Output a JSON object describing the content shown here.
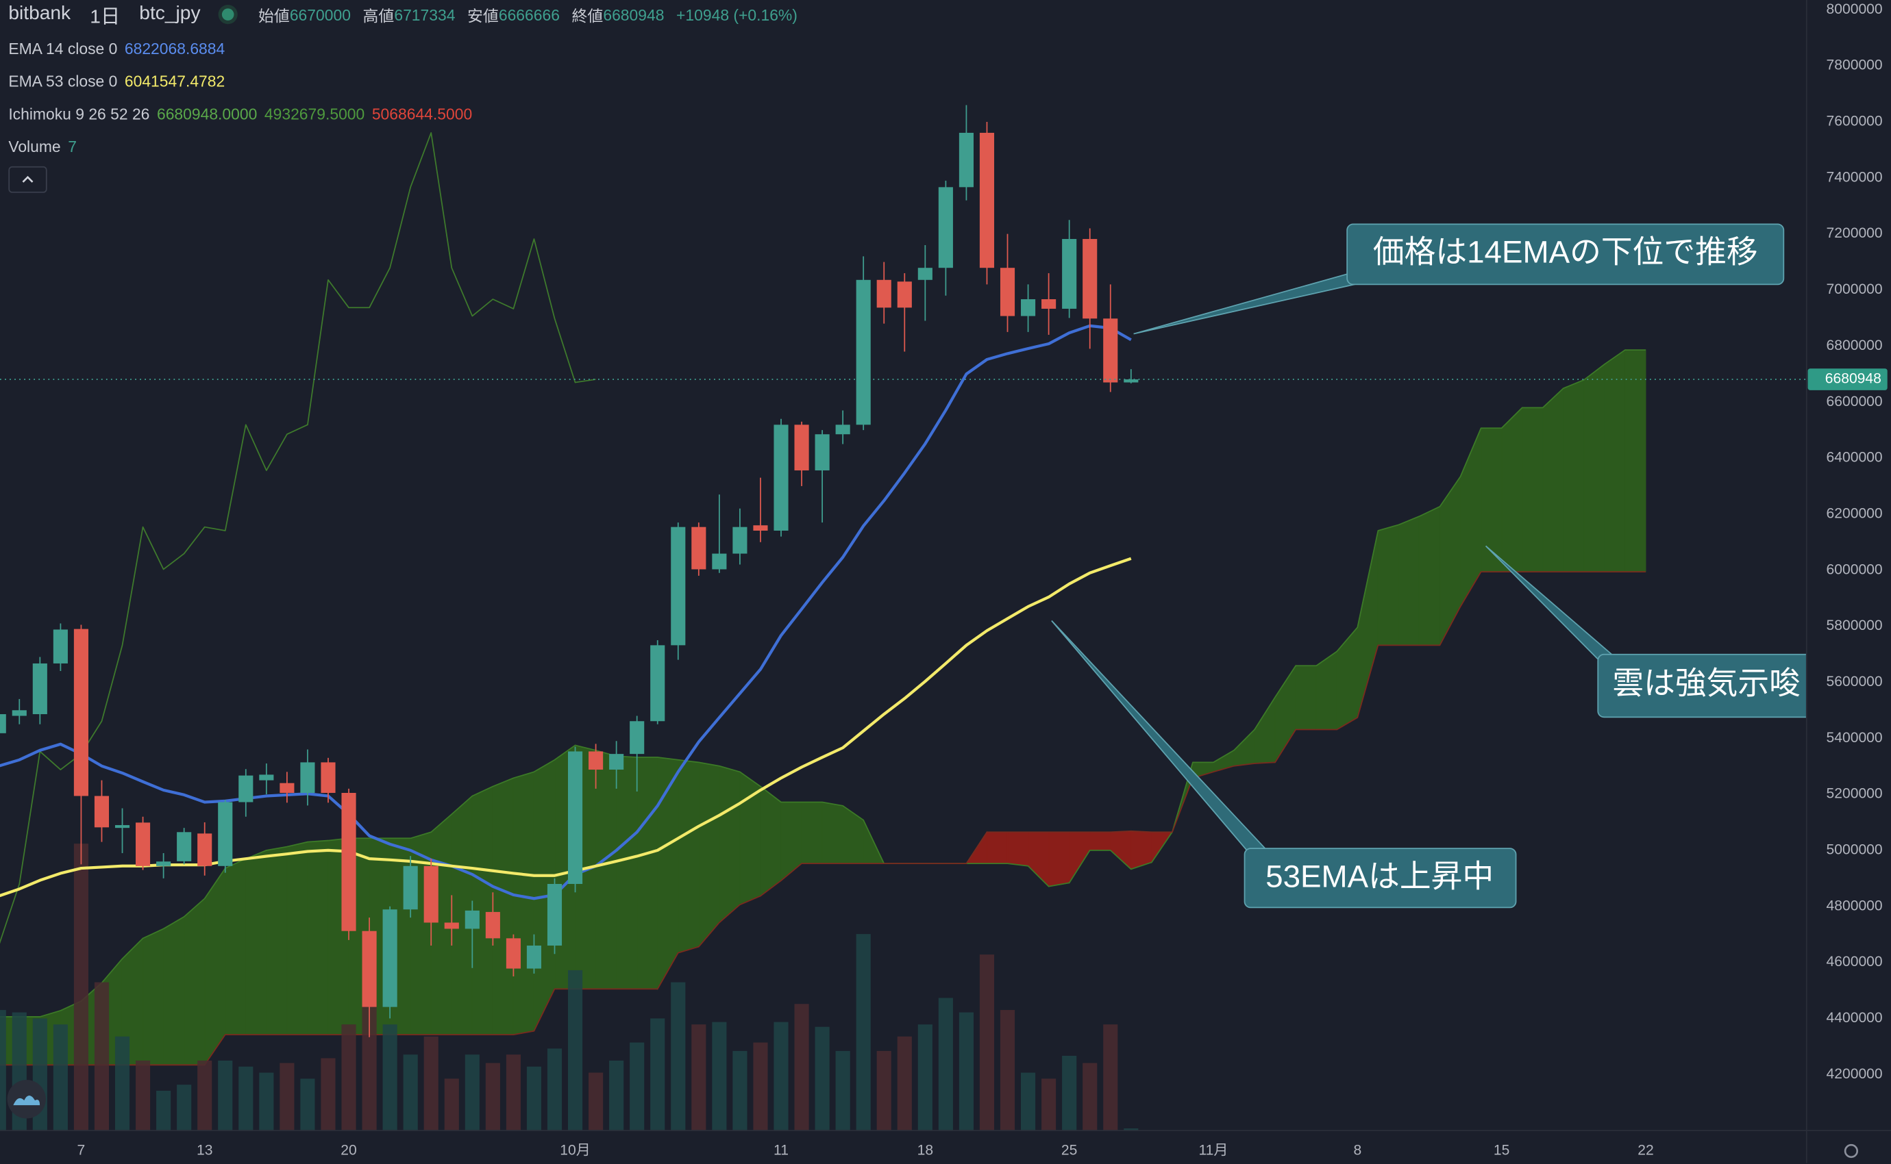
{
  "header": {
    "symbol": "bitbank",
    "interval": "1日",
    "pair": "btc_jpy",
    "open_label": "始値",
    "high_label": "高値",
    "low_label": "安値",
    "close_label": "終値",
    "change": "+10948 (+0.16%)"
  },
  "chart_data": {
    "type": "candlestick",
    "categories": [
      null,
      null,
      null,
      null,
      "7",
      null,
      null,
      null,
      null,
      null,
      "13",
      null,
      null,
      null,
      null,
      null,
      null,
      "20",
      null,
      null,
      null,
      null,
      null,
      null,
      null,
      null,
      null,
      null,
      "10月",
      null,
      null,
      null,
      null,
      null,
      null,
      null,
      null,
      null,
      "11",
      null,
      null,
      null,
      null,
      null,
      null,
      "18",
      null,
      null,
      null,
      null,
      null,
      null,
      "25",
      null,
      null,
      null,
      null,
      null,
      null,
      "11月",
      null,
      null,
      null,
      null,
      null,
      null,
      "8",
      null,
      null,
      null,
      null,
      null,
      null,
      "15",
      null,
      null,
      null,
      null,
      null,
      null,
      "22"
    ],
    "ylim": [
      4000000,
      8035000
    ],
    "yticks": [
      8000000,
      7800000,
      7600000,
      7400000,
      7200000,
      7000000,
      6800000,
      6600000,
      6400000,
      6200000,
      6000000,
      5800000,
      5600000,
      5400000,
      5200000,
      5000000,
      4800000,
      4600000,
      4400000,
      4200000
    ],
    "grid": false,
    "up_color": "#3f9e8f",
    "down_color": "#e05a4f",
    "candles": {
      "open": [
        5418000,
        5480000,
        5486000,
        5667000,
        5790000,
        5194000,
        5080000,
        5099000,
        4944000,
        4961000,
        5060000,
        4944000,
        5172000,
        5250000,
        5240000,
        5205000,
        5314000,
        5205000,
        4712000,
        4441000,
        4789000,
        4944000,
        4742000,
        4720000,
        4780000,
        4686000,
        4578000,
        4660000,
        4880000,
        5353000,
        5288000,
        5344000,
        5461000,
        5732000,
        6154000,
        6003000,
        6059000,
        6160000,
        6141000,
        6519000,
        6356000,
        6485000,
        6519000,
        7036000,
        7030000,
        7036000,
        7079000,
        7367000,
        7561000,
        7079000,
        6907000,
        6967000,
        6933000,
        7182000,
        6898000,
        6670000,
        null,
        null,
        null,
        null,
        null,
        null,
        null,
        null,
        null,
        null,
        null,
        null,
        null,
        null,
        null,
        null,
        null,
        null,
        null,
        null,
        null,
        null,
        null,
        null,
        null
      ],
      "high": [
        5520000,
        5540000,
        5690000,
        5810000,
        5805000,
        5250000,
        5150000,
        5120000,
        4990000,
        5080000,
        5100000,
        5180000,
        5290000,
        5310000,
        5280000,
        5360000,
        5330000,
        5220000,
        4760000,
        4800000,
        4980000,
        4970000,
        4840000,
        4820000,
        4850000,
        4700000,
        4700000,
        4900000,
        5370000,
        5380000,
        5390000,
        5480000,
        5750000,
        6170000,
        6170000,
        6270000,
        6220000,
        6330000,
        6540000,
        6530000,
        6500000,
        6570000,
        7120000,
        7100000,
        7060000,
        7160000,
        7390000,
        7660000,
        7600000,
        7200000,
        7020000,
        7060000,
        7250000,
        7220000,
        7020000,
        6717334,
        null,
        null,
        null,
        null,
        null,
        null,
        null,
        null,
        null,
        null,
        null,
        null,
        null,
        null,
        null,
        null,
        null,
        null,
        null,
        null,
        null,
        null,
        null,
        null,
        null
      ],
      "low": [
        5400000,
        5450000,
        5450000,
        5640000,
        4950000,
        5030000,
        4990000,
        4930000,
        4900000,
        4950000,
        4910000,
        4920000,
        5120000,
        5200000,
        5170000,
        5160000,
        5170000,
        4680000,
        4333000,
        4400000,
        4760000,
        4660000,
        4660000,
        4580000,
        4660000,
        4550000,
        4560000,
        4630000,
        4850000,
        5220000,
        5220000,
        5210000,
        5450000,
        5680000,
        5980000,
        5990000,
        6020000,
        6100000,
        6120000,
        6300000,
        6170000,
        6450000,
        6500000,
        6880000,
        6780000,
        6890000,
        6980000,
        7320000,
        7020000,
        6850000,
        6850000,
        6840000,
        6900000,
        6790000,
        6636000,
        6666666,
        null,
        null,
        null,
        null,
        null,
        null,
        null,
        null,
        null,
        null,
        null,
        null,
        null,
        null,
        null,
        null,
        null,
        null,
        null,
        null,
        null,
        null,
        null,
        null,
        null
      ],
      "close": [
        5486000,
        5500000,
        5667000,
        5788000,
        5194000,
        5082000,
        5090000,
        4944000,
        4960000,
        5065000,
        4944000,
        5172000,
        5267000,
        5270000,
        5205000,
        5314000,
        5205000,
        4712000,
        4441000,
        4789000,
        4944000,
        4742000,
        4720000,
        4785000,
        4686000,
        4578000,
        4660000,
        4880000,
        5353000,
        5288000,
        5344000,
        5461000,
        5732000,
        6154000,
        6003000,
        6059000,
        6154000,
        6141000,
        6519000,
        6356000,
        6485000,
        6519000,
        7036000,
        6937000,
        6937000,
        7079000,
        7367000,
        7561000,
        7079000,
        6907000,
        6967000,
        6933000,
        7182000,
        6898000,
        6670000,
        6680948,
        null,
        null,
        null,
        null,
        null,
        null,
        null,
        null,
        null,
        null,
        null,
        null,
        null,
        null,
        null,
        null,
        null,
        null,
        null,
        null,
        null,
        null,
        null,
        null,
        null
      ]
    },
    "series": [
      {
        "name": "EMA 14 close 0",
        "color": "#3f6fd6",
        "values": [
          5301000,
          5323000,
          5357000,
          5379000,
          5344000,
          5301000,
          5276000,
          5245000,
          5215000,
          5198000,
          5172000,
          5176000,
          5185000,
          5194000,
          5198000,
          5202000,
          5194000,
          5129000,
          5052000,
          5022000,
          5000000,
          4966000,
          4944000,
          4914000,
          4871000,
          4841000,
          4828000,
          4841000,
          4914000,
          4944000,
          5000000,
          5065000,
          5159000,
          5280000,
          5387000,
          5474000,
          5560000,
          5646000,
          5767000,
          5861000,
          5956000,
          6046000,
          6158000,
          6248000,
          6347000,
          6451000,
          6571000,
          6700000,
          6752000,
          6773000,
          6791000,
          6808000,
          6847000,
          6872000,
          6864000,
          6822068.6884,
          null,
          null,
          null,
          null,
          null,
          null,
          null,
          null,
          null,
          null,
          null,
          null,
          null,
          null,
          null,
          null,
          null,
          null,
          null,
          null,
          null,
          null,
          null,
          null,
          null
        ]
      },
      {
        "name": "EMA 53 close 0",
        "color": "#f3ea6a",
        "values": [
          4837000,
          4862000,
          4893000,
          4918000,
          4936000,
          4940000,
          4944000,
          4944000,
          4948000,
          4948000,
          4948000,
          4961000,
          4970000,
          4979000,
          4987000,
          4996000,
          5000000,
          4996000,
          4970000,
          4966000,
          4961000,
          4953000,
          4944000,
          4936000,
          4927000,
          4918000,
          4910000,
          4910000,
          4927000,
          4944000,
          4961000,
          4979000,
          5000000,
          5043000,
          5086000,
          5125000,
          5168000,
          5215000,
          5258000,
          5297000,
          5332000,
          5366000,
          5426000,
          5486000,
          5542000,
          5603000,
          5667000,
          5732000,
          5784000,
          5827000,
          5870000,
          5904000,
          5951000,
          5990000,
          6016000,
          6041547.4782,
          null,
          null,
          null,
          null,
          null,
          null,
          null,
          null,
          null,
          null,
          null,
          null,
          null,
          null,
          null,
          null,
          null,
          null,
          null,
          null,
          null,
          null,
          null,
          null,
          null
        ]
      }
    ],
    "ichimoku": {
      "name": "Ichimoku 9 26 52 26",
      "legend_value_labels": [
        "6680948.0000",
        "4932679.5000",
        "5068644.5000"
      ],
      "bull_color": "#2c5a1d",
      "bear_color": "#8a1e19",
      "lagging": {
        "color": "#3e7a2c",
        "values": [
          4660000,
          4880000,
          5353000,
          5288000,
          5344000,
          5461000,
          5732000,
          6154000,
          6003000,
          6059000,
          6154000,
          6141000,
          6519000,
          6356000,
          6485000,
          6519000,
          7036000,
          6937000,
          6937000,
          7079000,
          7367000,
          7561000,
          7079000,
          6907000,
          6967000,
          6933000,
          7182000,
          6898000,
          6670000,
          6680948,
          null,
          null,
          null,
          null,
          null,
          null,
          null,
          null,
          null,
          null,
          null,
          null,
          null,
          null,
          null,
          null,
          null,
          null,
          null,
          null,
          null,
          null,
          null,
          null,
          null,
          null,
          null,
          null,
          null,
          null,
          null,
          null,
          null,
          null,
          null,
          null,
          null,
          null,
          null,
          null,
          null,
          null,
          null,
          null,
          null,
          null,
          null,
          null,
          null,
          null,
          null
        ]
      },
      "span_a": {
        "color": "#3c7a27",
        "values": [
          4406000,
          4406000,
          4406000,
          4428000,
          4462000,
          4527000,
          4613000,
          4686000,
          4720000,
          4763000,
          4828000,
          4936000,
          4970000,
          5000000,
          5013000,
          5030000,
          5035000,
          5043000,
          5043000,
          5043000,
          5043000,
          5065000,
          5129000,
          5194000,
          5228000,
          5258000,
          5280000,
          5323000,
          5375000,
          5357000,
          5336000,
          5332000,
          5332000,
          5323000,
          5314000,
          5301000,
          5280000,
          5228000,
          5172000,
          5172000,
          5172000,
          5159000,
          5108000,
          4953000,
          4953000,
          4953000,
          4953000,
          4953000,
          4953000,
          4953000,
          4944000,
          4871000,
          4884000,
          5000000,
          5000000,
          4932679.5,
          4957000,
          5065000,
          5314000,
          5314000,
          5357000,
          5431000,
          5547000,
          5659000,
          5659000,
          5710000,
          5796000,
          6141000,
          6162000,
          6192000,
          6227000,
          6334000,
          6507000,
          6507000,
          6580000,
          6580000,
          6649000,
          6679000,
          6735000,
          6786000,
          6786000
        ]
      },
      "span_b": {
        "color": "#7a2a1e",
        "values": [
          4234000,
          4234000,
          4234000,
          4234000,
          4234000,
          4234000,
          4234000,
          4234000,
          4234000,
          4234000,
          4234000,
          4342000,
          4342000,
          4342000,
          4342000,
          4342000,
          4342000,
          4342000,
          4342000,
          4342000,
          4342000,
          4342000,
          4342000,
          4342000,
          4342000,
          4342000,
          4355000,
          4505000,
          4505000,
          4505000,
          4505000,
          4505000,
          4505000,
          4634000,
          4656000,
          4742000,
          4806000,
          4837000,
          4892000,
          4953000,
          4953000,
          4953000,
          4953000,
          4953000,
          4953000,
          4953000,
          4953000,
          4953000,
          5065000,
          5065000,
          5065000,
          5065000,
          5065000,
          5065000,
          5065000,
          5068644.5,
          5065000,
          5065000,
          5258000,
          5280000,
          5301000,
          5310000,
          5314000,
          5431000,
          5431000,
          5431000,
          5474000,
          5732000,
          5732000,
          5732000,
          5732000,
          5870000,
          5994000,
          5994000,
          5994000,
          5994000,
          5994000,
          5994000,
          5994000,
          5994000,
          5994000
        ]
      }
    },
    "volume": {
      "name": "Volume",
      "up_color": "#1e4447",
      "down_color": "#4a2b30",
      "values": [
        400,
        392,
        372,
        352,
        952,
        492,
        312,
        232,
        132,
        152,
        232,
        232,
        212,
        192,
        224,
        172,
        240,
        352,
        552,
        352,
        252,
        312,
        172,
        252,
        224,
        252,
        212,
        272,
        532,
        192,
        232,
        292,
        372,
        492,
        352,
        360,
        264,
        292,
        360,
        420,
        344,
        264,
        652,
        264,
        312,
        352,
        440,
        392,
        584,
        400,
        192,
        172,
        248,
        224,
        352,
        7,
        null,
        null,
        null,
        null,
        null,
        null,
        null,
        null,
        null,
        null,
        null,
        null,
        null,
        null,
        null,
        null,
        null,
        null,
        null,
        null,
        null,
        null,
        null,
        null,
        null
      ]
    },
    "annotations": [
      "価格は14EMAの下位で推移",
      "53EMAは上昇中",
      "雲は強気示唆"
    ]
  }
}
